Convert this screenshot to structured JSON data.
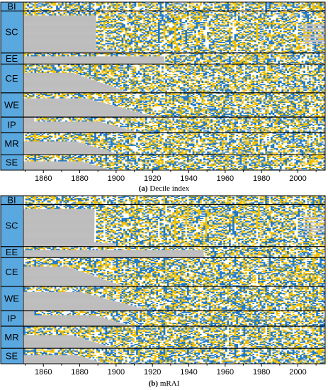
{
  "chart_data": [
    {
      "type": "heatmap",
      "panel_letter": "(a)",
      "caption": "Decile index",
      "regions": [
        {
          "label": "BI",
          "rows": 8
        },
        {
          "label": "SC",
          "rows": 38
        },
        {
          "label": "EE",
          "rows": 10
        },
        {
          "label": "CE",
          "rows": 26
        },
        {
          "label": "WE",
          "rows": 22
        },
        {
          "label": "IP",
          "rows": 14
        },
        {
          "label": "MR",
          "rows": 20
        },
        {
          "label": "SE",
          "rows": 14
        }
      ],
      "xlim": [
        1849,
        2015
      ],
      "xticks": [
        1860,
        1880,
        1900,
        1920,
        1940,
        1960,
        1980,
        2000
      ],
      "colors": {
        "wet": "#1f78c8",
        "dry": "#f0c000",
        "normal": "#ffffff",
        "missing": "#bdbdbd",
        "label_bg": "#5aa8e0",
        "grid": "#000000"
      }
    },
    {
      "type": "heatmap",
      "panel_letter": "(b)",
      "caption": "mRAI",
      "regions": [
        {
          "label": "BI",
          "rows": 8
        },
        {
          "label": "SC",
          "rows": 38
        },
        {
          "label": "EE",
          "rows": 10
        },
        {
          "label": "CE",
          "rows": 26
        },
        {
          "label": "WE",
          "rows": 22
        },
        {
          "label": "IP",
          "rows": 14
        },
        {
          "label": "MR",
          "rows": 20
        },
        {
          "label": "SE",
          "rows": 14
        }
      ],
      "xlim": [
        1849,
        2015
      ],
      "xticks": [
        1860,
        1880,
        1900,
        1920,
        1940,
        1960,
        1980,
        2000
      ],
      "colors": {
        "wet": "#1f78c8",
        "dry": "#f0c000",
        "normal": "#ffffff",
        "missing": "#bdbdbd",
        "label_bg": "#5aa8e0",
        "grid": "#000000"
      }
    }
  ]
}
